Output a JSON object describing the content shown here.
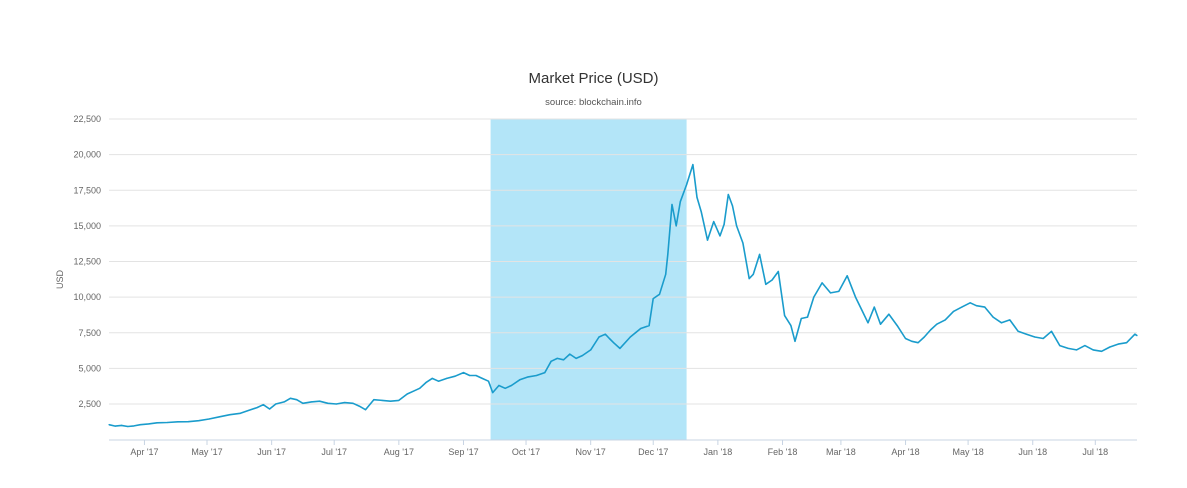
{
  "chart_data": {
    "type": "line",
    "title": "Market Price (USD)",
    "subtitle": "source: blockchain.info",
    "xlabel": "",
    "ylabel": "USD",
    "ylim": [
      0,
      22500
    ],
    "xlim": [
      "2017-03-15",
      "2018-07-21"
    ],
    "y_ticks": [
      2500,
      5000,
      7500,
      10000,
      12500,
      15000,
      17500,
      20000,
      22500
    ],
    "y_tick_labels": [
      "2,500",
      "5,000",
      "7,500",
      "10,000",
      "12,500",
      "15,000",
      "17,500",
      "20,000",
      "22,500"
    ],
    "x_ticks": [
      "2017-04-01",
      "2017-05-01",
      "2017-06-01",
      "2017-07-01",
      "2017-08-01",
      "2017-09-01",
      "2017-10-01",
      "2017-11-01",
      "2017-12-01",
      "2018-01-01",
      "2018-02-01",
      "2018-03-01",
      "2018-04-01",
      "2018-05-01",
      "2018-06-01",
      "2018-07-01"
    ],
    "x_tick_labels": [
      "Apr '17",
      "May '17",
      "Jun '17",
      "Jul '17",
      "Aug '17",
      "Sep '17",
      "Oct '17",
      "Nov '17",
      "Dec '17",
      "Jan '18",
      "Feb '18",
      "Mar '18",
      "Apr '18",
      "May '18",
      "Jun '18",
      "Jul '18"
    ],
    "grid": true,
    "highlight_band": {
      "from": "2017-09-14",
      "to": "2017-12-17",
      "color": "#b3e5f8"
    },
    "line_color": "#1a9ccc",
    "series": [
      {
        "x": [
          "2017-03-15",
          "2017-03-18",
          "2017-03-21",
          "2017-03-24",
          "2017-03-27",
          "2017-03-30",
          "2017-04-03",
          "2017-04-07",
          "2017-04-12",
          "2017-04-17",
          "2017-04-22",
          "2017-04-27",
          "2017-05-02",
          "2017-05-07",
          "2017-05-12",
          "2017-05-17",
          "2017-05-21",
          "2017-05-25",
          "2017-05-28",
          "2017-05-31",
          "2017-06-03",
          "2017-06-07",
          "2017-06-10",
          "2017-06-13",
          "2017-06-16",
          "2017-06-20",
          "2017-06-24",
          "2017-06-28",
          "2017-07-02",
          "2017-07-06",
          "2017-07-10",
          "2017-07-13",
          "2017-07-16",
          "2017-07-20",
          "2017-07-24",
          "2017-07-28",
          "2017-08-01",
          "2017-08-05",
          "2017-08-08",
          "2017-08-11",
          "2017-08-14",
          "2017-08-17",
          "2017-08-20",
          "2017-08-24",
          "2017-08-28",
          "2017-09-01",
          "2017-09-04",
          "2017-09-07",
          "2017-09-10",
          "2017-09-13",
          "2017-09-15",
          "2017-09-18",
          "2017-09-21",
          "2017-09-24",
          "2017-09-28",
          "2017-10-02",
          "2017-10-06",
          "2017-10-10",
          "2017-10-13",
          "2017-10-16",
          "2017-10-19",
          "2017-10-22",
          "2017-10-25",
          "2017-10-28",
          "2017-11-01",
          "2017-11-05",
          "2017-11-08",
          "2017-11-10",
          "2017-11-12",
          "2017-11-15",
          "2017-11-20",
          "2017-11-25",
          "2017-11-29",
          "2017-12-01",
          "2017-12-04",
          "2017-12-07",
          "2017-12-08",
          "2017-12-10",
          "2017-12-12",
          "2017-12-14",
          "2017-12-17",
          "2017-12-20",
          "2017-12-22",
          "2017-12-24",
          "2017-12-27",
          "2017-12-30",
          "2018-01-02",
          "2018-01-04",
          "2018-01-06",
          "2018-01-08",
          "2018-01-10",
          "2018-01-13",
          "2018-01-16",
          "2018-01-18",
          "2018-01-21",
          "2018-01-24",
          "2018-01-27",
          "2018-01-30",
          "2018-02-02",
          "2018-02-05",
          "2018-02-07",
          "2018-02-10",
          "2018-02-13",
          "2018-02-16",
          "2018-02-20",
          "2018-02-24",
          "2018-02-28",
          "2018-03-04",
          "2018-03-08",
          "2018-03-11",
          "2018-03-14",
          "2018-03-17",
          "2018-03-20",
          "2018-03-24",
          "2018-03-28",
          "2018-04-01",
          "2018-04-04",
          "2018-04-07",
          "2018-04-10",
          "2018-04-13",
          "2018-04-16",
          "2018-04-20",
          "2018-04-24",
          "2018-04-28",
          "2018-05-02",
          "2018-05-05",
          "2018-05-09",
          "2018-05-13",
          "2018-05-17",
          "2018-05-21",
          "2018-05-25",
          "2018-05-29",
          "2018-06-02",
          "2018-06-06",
          "2018-06-10",
          "2018-06-14",
          "2018-06-18",
          "2018-06-22",
          "2018-06-26",
          "2018-06-30",
          "2018-07-04",
          "2018-07-08",
          "2018-07-12",
          "2018-07-16",
          "2018-07-20",
          "2018-07-21"
        ],
        "y": [
          1050,
          950,
          1000,
          920,
          960,
          1050,
          1100,
          1180,
          1200,
          1250,
          1260,
          1330,
          1450,
          1600,
          1750,
          1850,
          2050,
          2250,
          2450,
          2150,
          2500,
          2650,
          2900,
          2800,
          2550,
          2650,
          2700,
          2550,
          2500,
          2600,
          2550,
          2350,
          2100,
          2800,
          2750,
          2700,
          2750,
          3200,
          3400,
          3600,
          4000,
          4300,
          4100,
          4300,
          4450,
          4700,
          4500,
          4500,
          4300,
          4100,
          3300,
          3800,
          3600,
          3800,
          4200,
          4400,
          4500,
          4700,
          5500,
          5700,
          5600,
          6000,
          5700,
          5900,
          6300,
          7200,
          7400,
          7100,
          6800,
          6400,
          7200,
          7800,
          8000,
          9900,
          10200,
          11600,
          13000,
          16500,
          15000,
          16700,
          17900,
          19300,
          17000,
          16000,
          14000,
          15300,
          14300,
          15100,
          17200,
          16400,
          15000,
          13800,
          11300,
          11600,
          13000,
          10900,
          11200,
          11800,
          8700,
          8000,
          6900,
          8500,
          8600,
          10000,
          11000,
          10300,
          10400,
          11500,
          10000,
          9100,
          8200,
          9300,
          8100,
          8800,
          8000,
          7100,
          6900,
          6800,
          7200,
          7700,
          8100,
          8400,
          9000,
          9300,
          9600,
          9400,
          9300,
          8600,
          8200,
          8400,
          7600,
          7400,
          7200,
          7100,
          7600,
          6600,
          6400,
          6300,
          6600,
          6300,
          6200,
          6500,
          6700,
          6800,
          7400,
          7300
        ]
      }
    ]
  }
}
